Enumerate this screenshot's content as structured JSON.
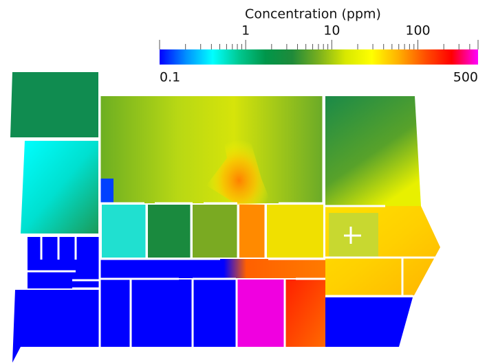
{
  "colorbar": {
    "title": "Concentration (ppm)",
    "scale": "log",
    "range": [
      0.1,
      500
    ],
    "ticks": [
      1,
      10,
      100
    ],
    "minor_ticks": [
      0.2,
      0.3,
      0.4,
      0.5,
      0.6,
      0.7,
      0.8,
      0.9,
      2,
      3,
      4,
      5,
      6,
      7,
      8,
      9,
      20,
      30,
      40,
      50,
      60,
      70,
      80,
      90,
      200,
      300,
      400
    ],
    "colormap": [
      "#0000ff",
      "#0090ff",
      "#00ffff",
      "#00c890",
      "#00964a",
      "#1f8a3a",
      "#7ab01e",
      "#d8e800",
      "#ffff00",
      "#ffb000",
      "#ff5000",
      "#ff0000",
      "#ff00ff"
    ]
  }
}
